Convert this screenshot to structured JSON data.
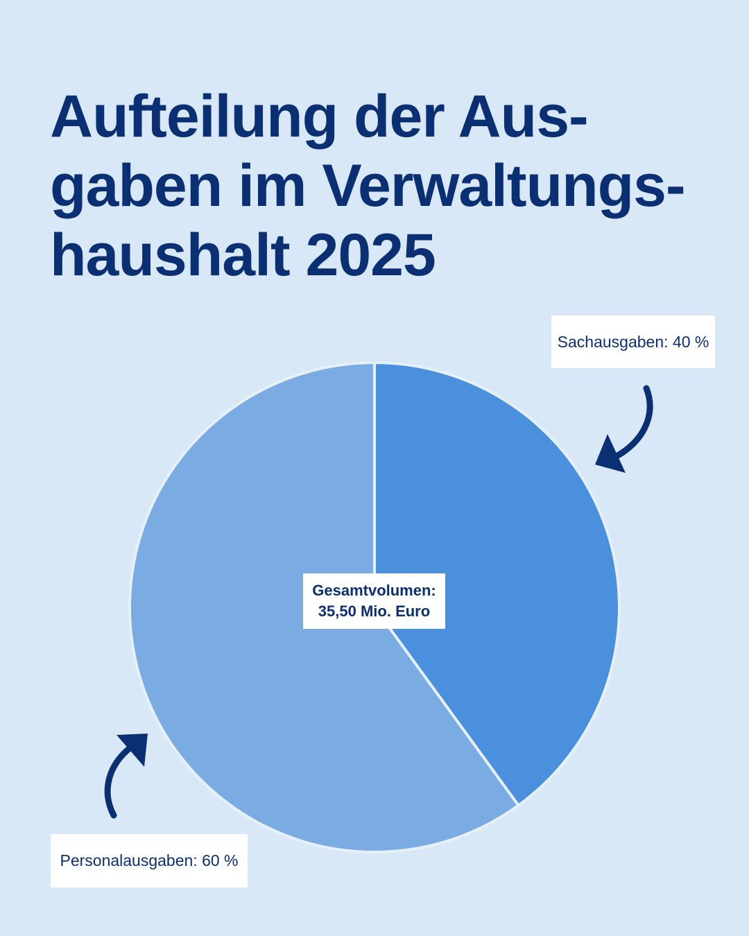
{
  "title_lines": [
    "Aufteilung der Aus-",
    "gaben im Verwaltungs-",
    "haushalt 2025"
  ],
  "center_label": {
    "line1": "Gesamtvolumen:",
    "line2": "35,50 Mio. Euro"
  },
  "chart_data": {
    "type": "pie",
    "title": "Aufteilung der Ausgaben im Verwaltungshaushalt 2025",
    "slices": [
      {
        "label": "Sachausgaben: 40 %",
        "value": 40,
        "color": "#4a90dc"
      },
      {
        "label": "Personalausgaben: 60 %",
        "value": 60,
        "color": "#7aace3"
      }
    ],
    "total_label": "Gesamtvolumen: 35,50 Mio. Euro",
    "legend": false
  },
  "colors": {
    "background": "#d9e8f7",
    "text": "#0a2f73",
    "arrow": "#0a2f73",
    "slice_separator": "#e6f0fa"
  },
  "icons": [
    "curved-arrow-icon",
    "curved-arrow-icon"
  ]
}
